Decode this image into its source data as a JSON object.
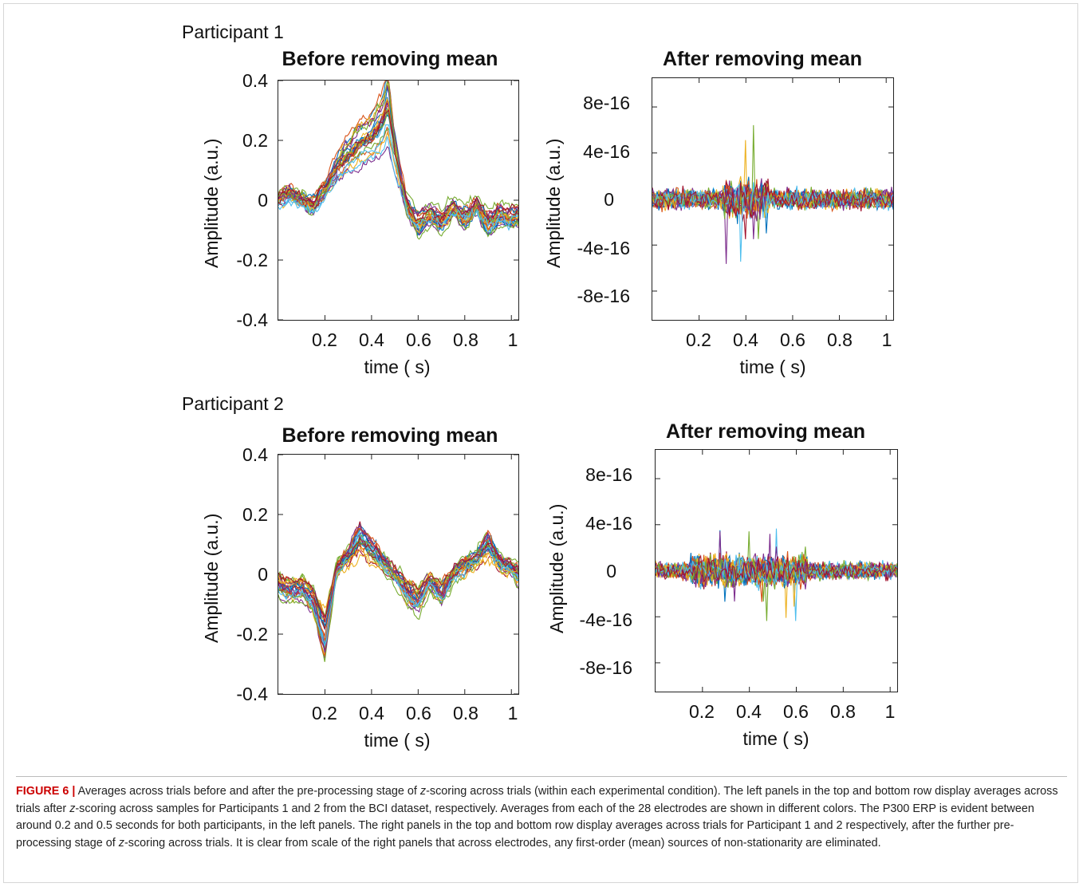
{
  "participants": [
    {
      "label": "Participant 1",
      "panels": [
        {
          "title": "Before removing mean",
          "ylabel": "Amplitude (a.u.)",
          "xlabel": "time ( s)",
          "yticks": [
            "0.4",
            "0.2",
            "0",
            "-0.2",
            "-0.4"
          ],
          "xticks": [
            "0.2",
            "0.4",
            "0.6",
            "0.8",
            "1"
          ]
        },
        {
          "title": "After removing mean",
          "ylabel": "Amplitude (a.u.)",
          "xlabel": "time ( s)",
          "yticks": [
            "8e-16",
            "4e-16",
            "0",
            "-4e-16",
            "-8e-16"
          ],
          "xticks": [
            "0.2",
            "0.4",
            "0.6",
            "0.8",
            "1"
          ]
        }
      ]
    },
    {
      "label": "Participant 2",
      "panels": [
        {
          "title": "Before removing mean",
          "ylabel": "Amplitude (a.u.)",
          "xlabel": "time ( s)",
          "yticks": [
            "0.4",
            "0.2",
            "0",
            "-0.2",
            "-0.4"
          ],
          "xticks": [
            "0.2",
            "0.4",
            "0.6",
            "0.8",
            "1"
          ]
        },
        {
          "title": "After removing mean",
          "ylabel": "Amplitude (a.u.)",
          "xlabel": "time ( s)",
          "yticks": [
            "8e-16",
            "4e-16",
            "0",
            "-4e-16",
            "-8e-16"
          ],
          "xticks": [
            "0.2",
            "0.4",
            "0.6",
            "0.8",
            "1"
          ]
        }
      ]
    }
  ],
  "caption": {
    "figure_label": "FIGURE 6",
    "separator": "|",
    "text_parts": [
      " Averages across trials before and after the pre-processing stage of ",
      "z",
      "-scoring across trials (within each experimental condition). The left panels in the top and bottom row display averages across trials after ",
      "z",
      "-scoring across samples for Participants 1 and 2 from the BCI dataset, respectively. Averages from each of the 28 electrodes are shown in different colors. The P300 ERP is evident between around 0.2 and 0.5 seconds for both participants, in the left panels. The right panels in the top and bottom row display averages across trials for Participant 1 and 2 respectively, after the further pre-processing stage of ",
      "z",
      "-scoring across trials. It is clear from scale of the right panels that across electrodes, any first-order (mean) sources of non-stationarity are eliminated."
    ]
  },
  "chart_data": [
    {
      "type": "line",
      "title": "Before removing mean",
      "xlabel": "time ( s)",
      "ylabel": "Amplitude (a.u.)",
      "xlim": [
        0,
        1.03
      ],
      "ylim": [
        -0.4,
        0.4
      ],
      "xticks": [
        0.2,
        0.4,
        0.6,
        0.8,
        1
      ],
      "yticks": [
        -0.4,
        -0.2,
        0,
        0.2,
        0.4
      ],
      "series_count": 28,
      "x": [
        0.0,
        0.05,
        0.1,
        0.15,
        0.2,
        0.25,
        0.3,
        0.35,
        0.4,
        0.45,
        0.47,
        0.5,
        0.55,
        0.6,
        0.65,
        0.7,
        0.75,
        0.8,
        0.85,
        0.9,
        0.95,
        1.0,
        1.03
      ],
      "mean_profile": [
        0.0,
        0.02,
        0.0,
        -0.02,
        0.03,
        0.1,
        0.14,
        0.18,
        0.2,
        0.25,
        0.3,
        0.15,
        -0.02,
        -0.08,
        -0.05,
        -0.07,
        -0.03,
        -0.06,
        -0.02,
        -0.08,
        -0.05,
        -0.06,
        -0.05
      ],
      "spread": 0.09
    },
    {
      "type": "line",
      "title": "After removing mean",
      "xlabel": "time ( s)",
      "ylabel": "Amplitude (a.u.)",
      "xlim": [
        0,
        1.03
      ],
      "ylim": [
        -1.05e-15,
        1.05e-15
      ],
      "xticks": [
        0.2,
        0.4,
        0.6,
        0.8,
        1
      ],
      "yticks": [
        -8e-16,
        -4e-16,
        0,
        4e-16,
        8e-16
      ],
      "series_count": 28,
      "noise_amplitude": 1.2e-16,
      "peak_window": [
        0.3,
        0.5
      ],
      "peak_max": 7.3e-16,
      "peak_min": -5.8e-16
    },
    {
      "type": "line",
      "title": "Before removing mean",
      "xlabel": "time ( s)",
      "ylabel": "Amplitude (a.u.)",
      "xlim": [
        0,
        1.03
      ],
      "ylim": [
        -0.4,
        0.4
      ],
      "xticks": [
        0.2,
        0.4,
        0.6,
        0.8,
        1
      ],
      "yticks": [
        -0.4,
        -0.2,
        0,
        0.2,
        0.4
      ],
      "series_count": 28,
      "x": [
        0.0,
        0.05,
        0.1,
        0.15,
        0.2,
        0.25,
        0.3,
        0.35,
        0.4,
        0.45,
        0.5,
        0.55,
        0.6,
        0.65,
        0.7,
        0.75,
        0.8,
        0.85,
        0.9,
        0.95,
        1.0,
        1.03
      ],
      "mean_profile": [
        -0.03,
        -0.05,
        -0.04,
        -0.08,
        -0.2,
        0.02,
        0.06,
        0.12,
        0.08,
        0.04,
        0.0,
        -0.05,
        -0.08,
        -0.02,
        -0.06,
        0.0,
        0.03,
        0.05,
        0.1,
        0.04,
        0.02,
        0.0
      ],
      "spread": 0.08
    },
    {
      "type": "line",
      "title": "After removing mean",
      "xlabel": "time ( s)",
      "ylabel": "Amplitude (a.u.)",
      "xlim": [
        0,
        1.03
      ],
      "ylim": [
        -1.05e-15,
        1.05e-15
      ],
      "xticks": [
        0.2,
        0.4,
        0.6,
        0.8,
        1
      ],
      "yticks": [
        -8e-16,
        -4e-16,
        0,
        4e-16,
        8e-16
      ],
      "series_count": 28,
      "noise_amplitude": 1e-16,
      "peak_window": [
        0.15,
        0.65
      ],
      "peak_max": 4e-16,
      "peak_min": -4.5e-16
    }
  ],
  "series_colors": [
    "#0072BD",
    "#D95319",
    "#EDB120",
    "#7E2F8E",
    "#77AC30",
    "#4DBEEE",
    "#A2142F"
  ]
}
